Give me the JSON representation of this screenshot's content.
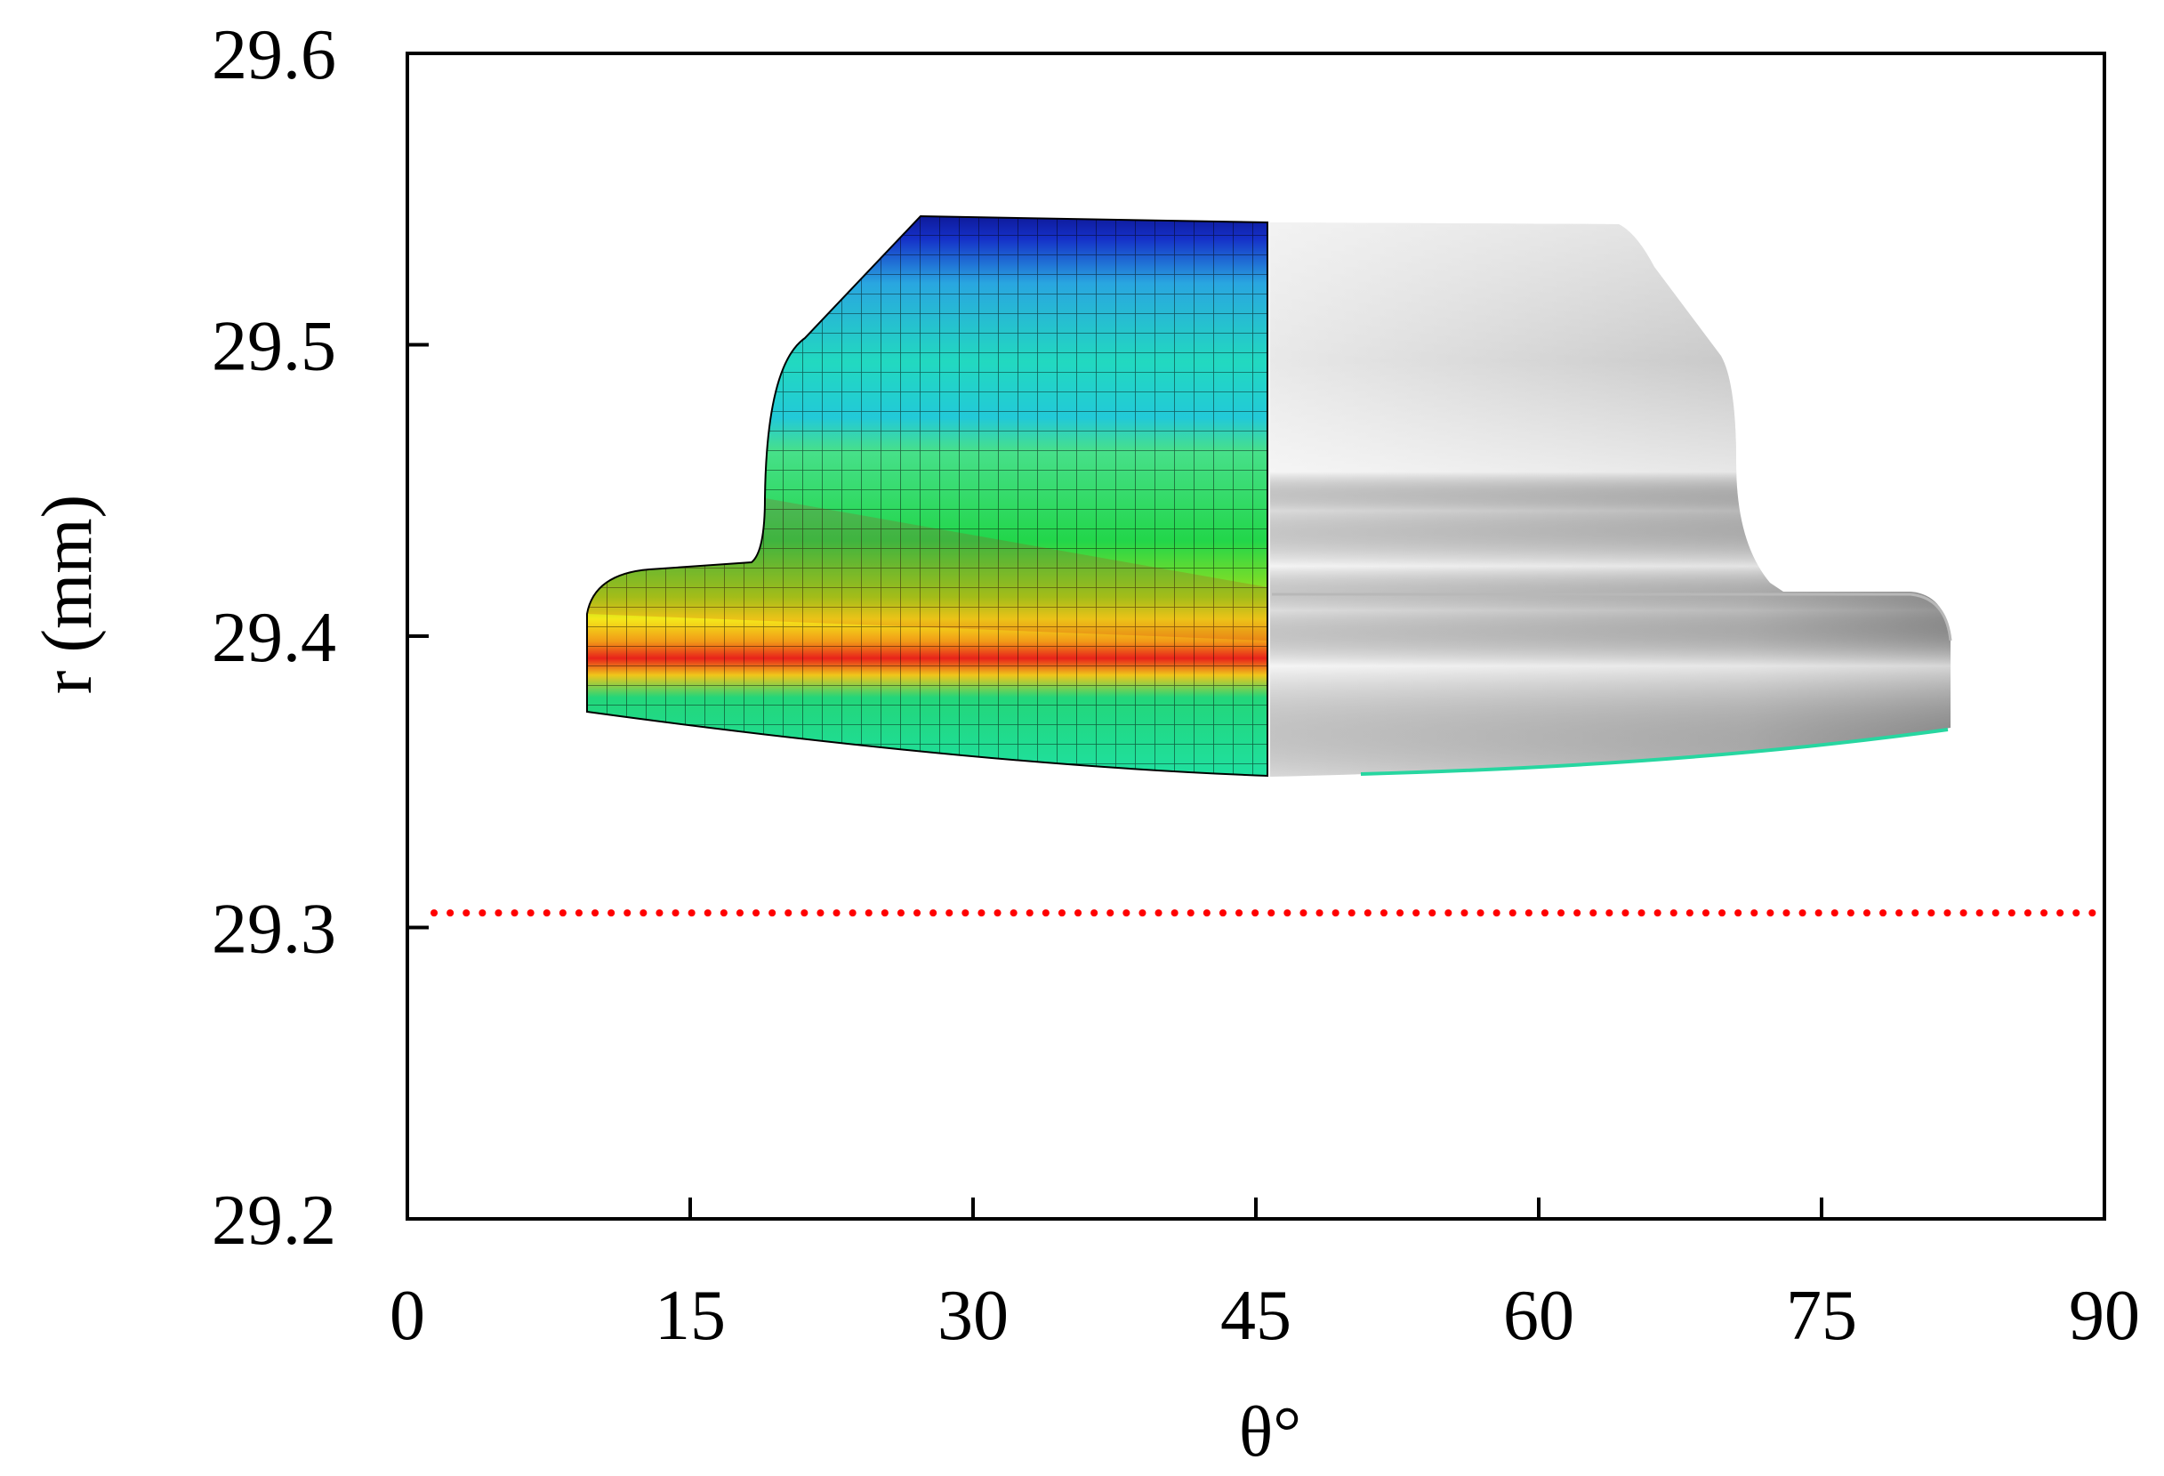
{
  "chart_data": {
    "type": "scatter",
    "xlabel": "θ°",
    "ylabel": "r (mm)",
    "xlim": [
      0,
      90
    ],
    "ylim": [
      29.2,
      29.6
    ],
    "x_ticks": [
      "0",
      "15",
      "30",
      "45",
      "60",
      "75",
      "90"
    ],
    "y_ticks": [
      "29.2",
      "29.3",
      "29.4",
      "29.5",
      "29.6"
    ],
    "grid": false,
    "series": [
      {
        "style": "dotted",
        "color": "#ff0000",
        "x": [
          0,
          90
        ],
        "y": [
          29.305,
          29.305
        ]
      }
    ],
    "inset": {
      "content": "3D rendering of a tapered cylindrical boss on a flange: left half colored mesh (contour: green/cyan body, blue top rim, red/yellow band at flange junction), right half smooth gray shading",
      "colors": {
        "mesh_body": "#22d67a",
        "mesh_top": "#1fc6d6",
        "mesh_rim": "#1530c8",
        "mesh_hot": "#e8221a",
        "mesh_warm": "#f4e81a",
        "gray_light": "#f2f2f2",
        "gray_dark": "#9a9a9a"
      }
    }
  }
}
